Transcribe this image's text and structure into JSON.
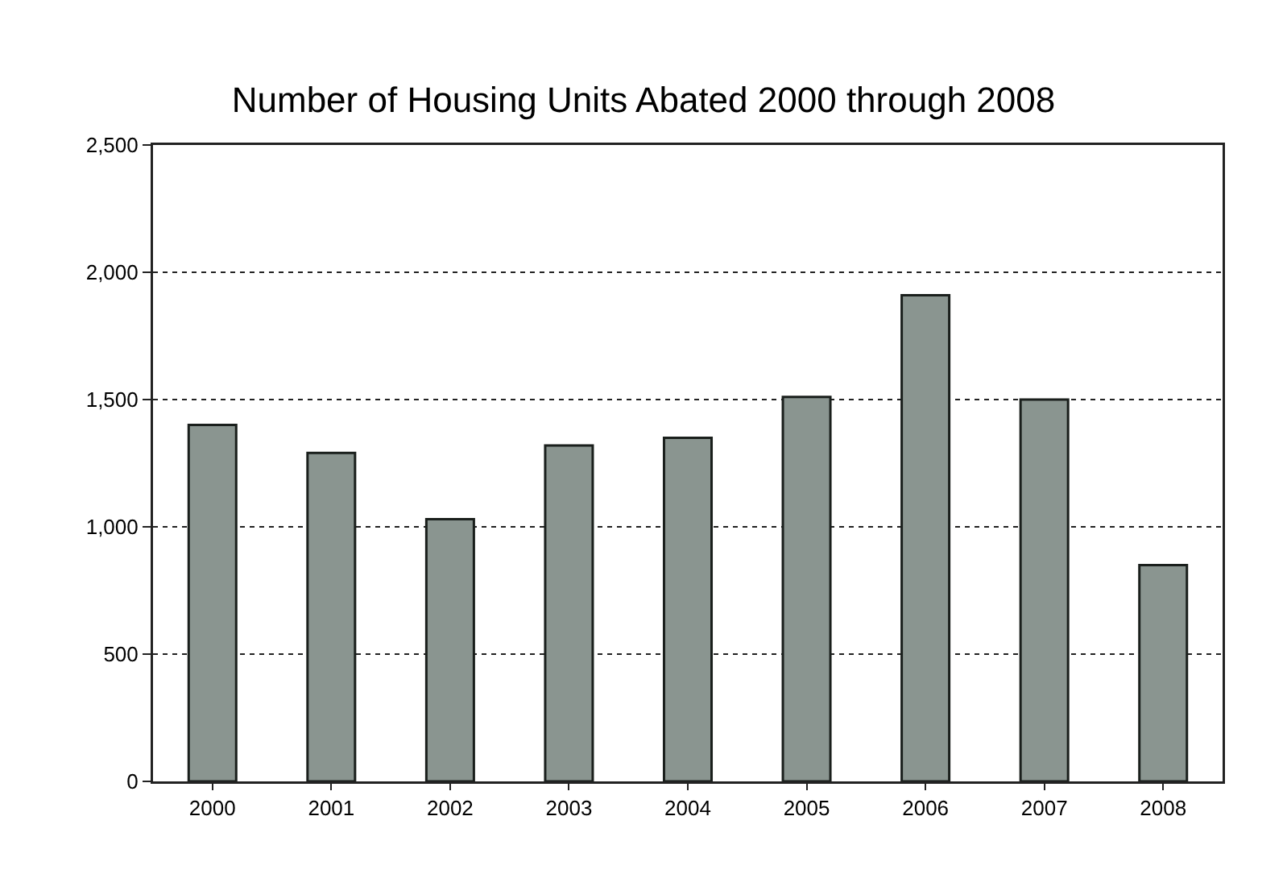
{
  "chart_data": {
    "type": "bar",
    "title": "Number of Housing Units Abated 2000 through 2008",
    "categories": [
      "2000",
      "2001",
      "2002",
      "2003",
      "2004",
      "2005",
      "2006",
      "2007",
      "2008"
    ],
    "values": [
      1400,
      1290,
      1030,
      1320,
      1350,
      1510,
      1910,
      1500,
      850
    ],
    "color": "#8a9590",
    "ylim": [
      0,
      2500
    ],
    "yticks": [
      {
        "value": 0,
        "label": "0"
      },
      {
        "value": 500,
        "label": "500"
      },
      {
        "value": 1000,
        "label": "1,000"
      },
      {
        "value": 1500,
        "label": "1,500"
      },
      {
        "value": 2000,
        "label": "2,000"
      },
      {
        "value": 2500,
        "label": "2,500"
      }
    ],
    "grid": "y",
    "line_style": "dotted"
  }
}
